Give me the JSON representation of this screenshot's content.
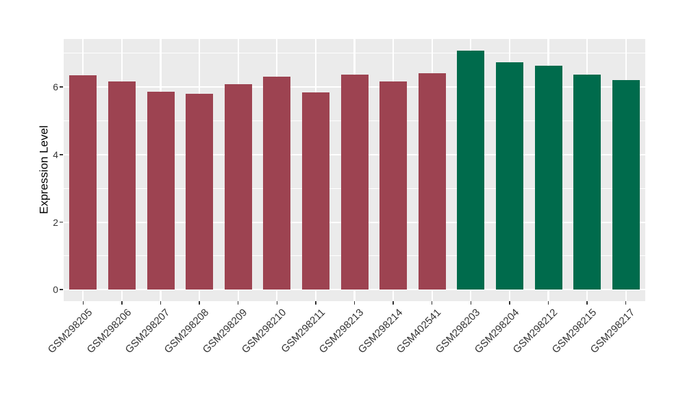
{
  "chart_data": {
    "type": "bar",
    "title": "",
    "xlabel": "",
    "ylabel": "Expression Level",
    "categories": [
      "GSM298205",
      "GSM298206",
      "GSM298207",
      "GSM298208",
      "GSM298209",
      "GSM298210",
      "GSM298211",
      "GSM298213",
      "GSM298214",
      "GSM402541",
      "GSM298203",
      "GSM298204",
      "GSM298212",
      "GSM298215",
      "GSM298217"
    ],
    "values": [
      6.34,
      6.17,
      5.85,
      5.79,
      6.08,
      6.31,
      5.83,
      6.36,
      6.17,
      6.4,
      7.08,
      6.73,
      6.62,
      6.37,
      6.21
    ],
    "bar_colors": [
      "#9D4351",
      "#9D4351",
      "#9D4351",
      "#9D4351",
      "#9D4351",
      "#9D4351",
      "#9D4351",
      "#9D4351",
      "#9D4351",
      "#9D4351",
      "#006B4C",
      "#006B4C",
      "#006B4C",
      "#006B4C",
      "#006B4C"
    ],
    "groups": [
      {
        "name": "maroon-group",
        "color": "#9D4351",
        "count": 10
      },
      {
        "name": "green-group",
        "color": "#006B4C",
        "count": 5
      }
    ],
    "yticks": [
      0,
      2,
      4,
      6
    ],
    "minor_yticks": [
      1,
      3,
      5,
      7
    ],
    "ylim": [
      -0.34,
      7.42
    ],
    "legend_position": "none",
    "grid": "on",
    "panel_background": "#EBEBEB",
    "gridline_color": "#FFFFFF",
    "tick_label_color": "#333333",
    "axis_title_color": "#000000"
  }
}
